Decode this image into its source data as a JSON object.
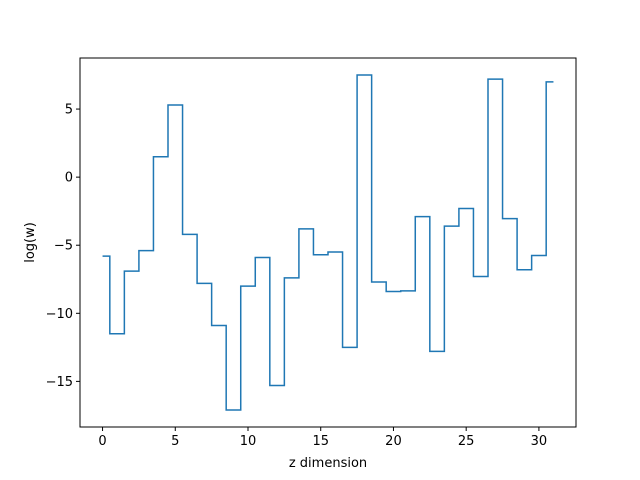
{
  "chart_data": {
    "type": "line",
    "drawstyle": "steps-mid",
    "title": "",
    "xlabel": "z dimension",
    "ylabel": "log(w)",
    "xlim": [
      -1.55,
      32.55
    ],
    "ylim": [
      -18.35,
      8.75
    ],
    "xticks": [
      0,
      5,
      10,
      15,
      20,
      25,
      30
    ],
    "yticks": [
      -15,
      -10,
      -5,
      0,
      5
    ],
    "grid": false,
    "legend": "none",
    "series": [
      {
        "color": "#1f77b4",
        "x": [
          0,
          1,
          2,
          3,
          4,
          5,
          6,
          7,
          8,
          9,
          10,
          11,
          12,
          13,
          14,
          15,
          16,
          17,
          18,
          19,
          20,
          21,
          22,
          23,
          24,
          25,
          26,
          27,
          28,
          29,
          30,
          31
        ],
        "values": [
          -5.8,
          -11.5,
          -6.9,
          -5.4,
          1.5,
          5.3,
          -4.2,
          -7.8,
          -10.9,
          -17.1,
          -8.0,
          -5.9,
          -15.3,
          -7.4,
          -3.8,
          -5.7,
          -5.5,
          -12.5,
          7.5,
          -7.7,
          -8.4,
          -8.35,
          -2.9,
          -12.8,
          -3.6,
          -2.3,
          -7.3,
          7.2,
          -3.05,
          -6.8,
          -5.75,
          7.0
        ]
      }
    ]
  }
}
